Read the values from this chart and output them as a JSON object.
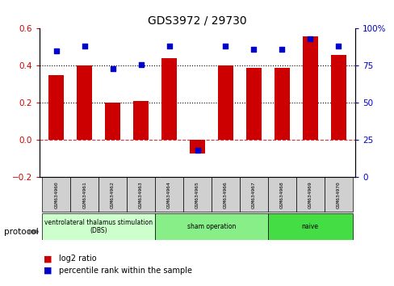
{
  "title": "GDS3972 / 29730",
  "samples": [
    "GSM634960",
    "GSM634961",
    "GSM634962",
    "GSM634963",
    "GSM634964",
    "GSM634965",
    "GSM634966",
    "GSM634967",
    "GSM634968",
    "GSM634969",
    "GSM634970"
  ],
  "log2_ratio": [
    0.35,
    0.4,
    0.2,
    0.21,
    0.44,
    -0.07,
    0.4,
    0.39,
    0.39,
    0.56,
    0.46
  ],
  "percentile_rank": [
    85,
    88,
    73,
    76,
    88,
    18,
    88,
    86,
    86,
    93,
    88
  ],
  "bar_color": "#cc0000",
  "dot_color": "#0000cc",
  "ylim_left": [
    -0.2,
    0.6
  ],
  "ylim_right": [
    0,
    100
  ],
  "yticks_left": [
    -0.2,
    0.0,
    0.2,
    0.4,
    0.6
  ],
  "yticks_right": [
    0,
    25,
    50,
    75,
    100
  ],
  "hline_dotted": [
    0.2,
    0.4
  ],
  "hline_dashdot": 0.0,
  "protocol_groups": [
    {
      "label": "ventrolateral thalamus stimulation\n(DBS)",
      "start": 0,
      "end": 3,
      "color": "#ccffcc"
    },
    {
      "label": "sham operation",
      "start": 4,
      "end": 7,
      "color": "#88ee88"
    },
    {
      "label": "naive",
      "start": 8,
      "end": 10,
      "color": "#44dd44"
    }
  ],
  "legend_bar_label": "log2 ratio",
  "legend_dot_label": "percentile rank within the sample",
  "title_fontsize": 10,
  "axis_label_color_left": "#cc0000",
  "axis_label_color_right": "#0000cc",
  "bar_width": 0.55
}
